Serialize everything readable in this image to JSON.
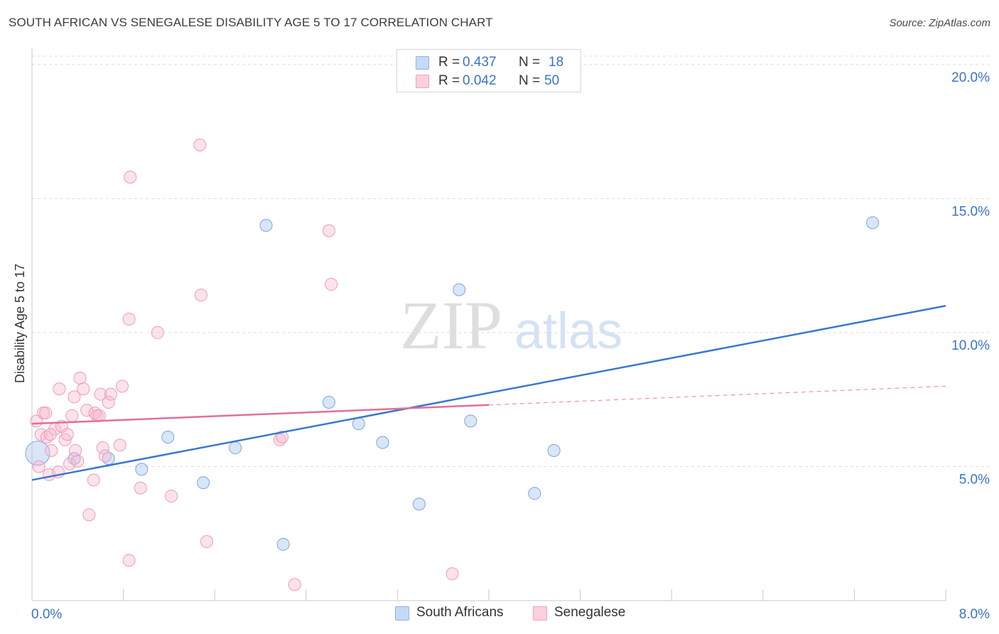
{
  "header": {
    "title": "SOUTH AFRICAN VS SENEGALESE DISABILITY AGE 5 TO 17 CORRELATION CHART",
    "source": "Source: ZipAtlas.com"
  },
  "watermark": {
    "zip": "ZIP",
    "atlas": "atlas"
  },
  "legend": {
    "rows": [
      {
        "r_label": "R = ",
        "r_value": "0.437",
        "n_label": "N = ",
        "n_value": "18",
        "color": "#aac8f0"
      },
      {
        "r_label": "R = ",
        "r_value": "0.042",
        "n_label": "N = ",
        "n_value": "50",
        "color": "#f7b8cc"
      }
    ]
  },
  "bottom_legend": {
    "items": [
      {
        "label": "South Africans",
        "color": "#aac8f0"
      },
      {
        "label": "Senegalese",
        "color": "#f7b8cc"
      }
    ]
  },
  "chart_data": {
    "type": "scatter",
    "title": "SOUTH AFRICAN VS SENEGALESE DISABILITY AGE 5 TO 17 CORRELATION CHART",
    "xlabel": "",
    "ylabel": "Disability Age 5 to 17",
    "xlim": [
      0,
      8
    ],
    "ylim": [
      0,
      20.5
    ],
    "x_tick_labels": [
      "0.0%",
      "8.0%"
    ],
    "y_ticks": [
      5,
      10,
      15,
      20
    ],
    "y_tick_labels": [
      "5.0%",
      "10.0%",
      "15.0%",
      "20.0%"
    ],
    "grid": true,
    "legend_position": "top-center",
    "colors": {
      "south_africans": "#3a78d0",
      "senegalese": "#e07099",
      "tick_label": "#3a74c4"
    },
    "series": [
      {
        "name": "South Africans",
        "points": [
          [
            0.05,
            5.5
          ],
          [
            0.37,
            5.3
          ],
          [
            0.67,
            5.3
          ],
          [
            0.96,
            4.9
          ],
          [
            1.19,
            6.1
          ],
          [
            1.5,
            4.4
          ],
          [
            1.78,
            5.7
          ],
          [
            2.05,
            14.0
          ],
          [
            2.2,
            2.1
          ],
          [
            2.6,
            7.4
          ],
          [
            2.86,
            6.6
          ],
          [
            3.07,
            5.9
          ],
          [
            3.39,
            3.6
          ],
          [
            3.74,
            11.6
          ],
          [
            3.84,
            6.7
          ],
          [
            4.4,
            4.0
          ],
          [
            4.57,
            5.6
          ],
          [
            7.36,
            14.1
          ]
        ],
        "trend": {
          "x": [
            0,
            8
          ],
          "y": [
            4.5,
            11.0
          ],
          "dashed_from": null
        }
      },
      {
        "name": "Senegalese",
        "points": [
          [
            0.04,
            6.7
          ],
          [
            0.06,
            5.0
          ],
          [
            0.08,
            6.2
          ],
          [
            0.1,
            7.0
          ],
          [
            0.13,
            6.1
          ],
          [
            0.15,
            4.7
          ],
          [
            0.17,
            5.6
          ],
          [
            0.2,
            6.4
          ],
          [
            0.23,
            4.8
          ],
          [
            0.24,
            7.9
          ],
          [
            0.26,
            6.5
          ],
          [
            0.29,
            6.0
          ],
          [
            0.31,
            6.2
          ],
          [
            0.33,
            5.1
          ],
          [
            0.35,
            6.9
          ],
          [
            0.37,
            7.6
          ],
          [
            0.38,
            5.6
          ],
          [
            0.4,
            5.2
          ],
          [
            0.42,
            8.3
          ],
          [
            0.45,
            7.9
          ],
          [
            0.48,
            7.1
          ],
          [
            0.5,
            3.2
          ],
          [
            0.54,
            4.5
          ],
          [
            0.57,
            6.9
          ],
          [
            0.6,
            7.7
          ],
          [
            0.62,
            5.7
          ],
          [
            0.64,
            5.4
          ],
          [
            0.67,
            7.4
          ],
          [
            0.69,
            7.7
          ],
          [
            0.77,
            5.8
          ],
          [
            0.85,
            1.5
          ],
          [
            0.85,
            10.5
          ],
          [
            0.95,
            4.2
          ],
          [
            1.1,
            10.0
          ],
          [
            1.22,
            3.9
          ],
          [
            1.48,
            11.4
          ],
          [
            1.53,
            2.2
          ],
          [
            1.47,
            17.0
          ],
          [
            0.86,
            15.8
          ],
          [
            2.17,
            6.0
          ],
          [
            2.19,
            6.1
          ],
          [
            2.3,
            0.6
          ],
          [
            2.6,
            13.8
          ],
          [
            2.62,
            11.8
          ],
          [
            3.68,
            1.0
          ],
          [
            0.55,
            7.0
          ],
          [
            0.59,
            6.9
          ],
          [
            0.79,
            8.0
          ],
          [
            0.16,
            6.2
          ],
          [
            0.12,
            7.0
          ]
        ],
        "trend": {
          "x": [
            0,
            8
          ],
          "y": [
            6.6,
            8.0
          ],
          "dashed_from": 4.0
        }
      }
    ]
  }
}
